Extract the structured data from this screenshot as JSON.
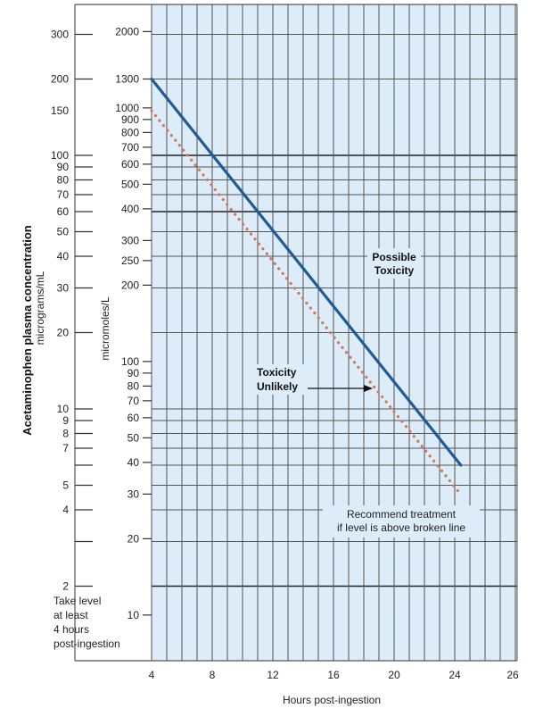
{
  "chart_data": {
    "type": "line",
    "title": "",
    "xlabel": "Hours post-ingestion",
    "ylabel": "Acetaminophen plasma concentration",
    "ylabel_units_left": "micrograms/mL",
    "ylabel_units_right": "micromoles/L",
    "y_scale": "log",
    "ylim_mcg_per_ml": [
      1,
      394
    ],
    "xlim": [
      4,
      26
    ],
    "grid": true,
    "x_ticks": [
      "4",
      "8",
      "12",
      "16",
      "20",
      "24",
      "26"
    ],
    "y_ticks_mcg": [
      {
        "value": 300,
        "label": "300"
      },
      {
        "value": 200,
        "label": "200"
      },
      {
        "value": 150,
        "label": "150"
      },
      {
        "value": 100,
        "label": "100"
      },
      {
        "value": 90,
        "label": "90"
      },
      {
        "value": 80,
        "label": "80"
      },
      {
        "value": 70,
        "label": "70"
      },
      {
        "value": 60,
        "label": "60"
      },
      {
        "value": 50,
        "label": "50"
      },
      {
        "value": 40,
        "label": "40"
      },
      {
        "value": 30,
        "label": "30"
      },
      {
        "value": 20,
        "label": "20"
      },
      {
        "value": 10,
        "label": "10"
      },
      {
        "value": 9,
        "label": "9"
      },
      {
        "value": 8,
        "label": "8"
      },
      {
        "value": 7,
        "label": "7"
      },
      {
        "value": 6,
        "label": ""
      },
      {
        "value": 5,
        "label": "5"
      },
      {
        "value": 4,
        "label": "4"
      },
      {
        "value": 3,
        "label": ""
      },
      {
        "value": 2,
        "label": "2"
      }
    ],
    "y_ticks_umol": [
      "2000",
      "1300",
      "1000",
      "900",
      "800",
      "700",
      "600",
      "500",
      "400",
      "300",
      "250",
      "200",
      "100",
      "90",
      "80",
      "70",
      "60",
      "50",
      "40",
      "30",
      "20",
      "10"
    ],
    "series": [
      {
        "style": "solid",
        "color": "#1f5a99",
        "points": [
          [
            4,
            200
          ],
          [
            24.4,
            6
          ]
        ]
      },
      {
        "style": "dotted",
        "color": "#d0785a",
        "points": [
          [
            4,
            150
          ],
          [
            24.4,
            4.6
          ]
        ]
      }
    ],
    "annotations": {
      "possible_toxicity": [
        "Possible",
        "Toxicity"
      ],
      "toxicity_unlikely": [
        "Toxicity",
        "Unlikely"
      ],
      "recommend": [
        "Recommend treatment",
        "if level is above broken line"
      ],
      "take_level": [
        "Take level",
        "at least",
        "4 hours",
        "post-ingestion"
      ]
    },
    "colors": {
      "grid_background": "#dcecf8",
      "grid_line": "#555555"
    }
  }
}
